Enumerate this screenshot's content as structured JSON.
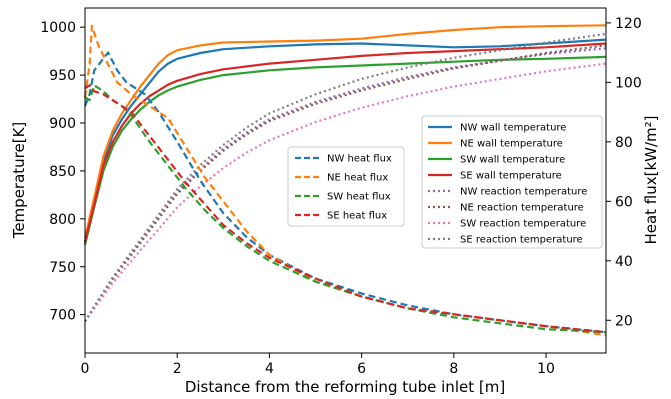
{
  "chart_data": {
    "type": "line",
    "xlabel": "Distance from the reforming tube inlet [m]",
    "ylabel_left": "Temperature[K]",
    "ylabel_right": "Heat flux[kW/m²]",
    "xlim": [
      0,
      11.3
    ],
    "ylim_left": [
      660,
      1020
    ],
    "ylim_right": [
      9,
      125
    ],
    "x_ticks": [
      0,
      2,
      4,
      6,
      8,
      10
    ],
    "y_left_ticks": [
      700,
      750,
      800,
      850,
      900,
      950,
      1000
    ],
    "y_right_ticks": [
      20,
      40,
      60,
      80,
      100,
      120
    ],
    "grid": false,
    "colors": {
      "blue": "#1f77b4",
      "orange": "#ff7f0e",
      "green": "#2ca02c",
      "red": "#d62728",
      "purple": "#9467bd",
      "brown": "#8c564b",
      "pink": "#e377c2",
      "gray": "#7f7f7f"
    },
    "heat_flux_legend_position": "center",
    "temperature_legend_position": "center-right",
    "heat_flux_series": [
      {
        "name": "NW heat flux",
        "axis": "right",
        "style": "dashed",
        "color": "#1f77b4",
        "points": [
          [
            0,
            92
          ],
          [
            0.1,
            96
          ],
          [
            0.2,
            104
          ],
          [
            0.35,
            107
          ],
          [
            0.5,
            110
          ],
          [
            0.7,
            104
          ],
          [
            0.9,
            100
          ],
          [
            1.1,
            98
          ],
          [
            1.3,
            96
          ],
          [
            1.6,
            90
          ],
          [
            2.0,
            80
          ],
          [
            2.5,
            67
          ],
          [
            3.0,
            56
          ],
          [
            3.5,
            48
          ],
          [
            4.0,
            42
          ],
          [
            5.0,
            34
          ],
          [
            6.0,
            29
          ],
          [
            7.0,
            25
          ],
          [
            8.0,
            22
          ],
          [
            9.0,
            20
          ],
          [
            10.0,
            18
          ],
          [
            11.3,
            16
          ]
        ]
      },
      {
        "name": "NE heat flux",
        "axis": "right",
        "style": "dashed",
        "color": "#ff7f0e",
        "points": [
          [
            0,
            95
          ],
          [
            0.1,
            106
          ],
          [
            0.15,
            119
          ],
          [
            0.3,
            112
          ],
          [
            0.5,
            106
          ],
          [
            0.7,
            100
          ],
          [
            1.0,
            96
          ],
          [
            1.4,
            92
          ],
          [
            1.8,
            88
          ],
          [
            2.2,
            78
          ],
          [
            2.6,
            68
          ],
          [
            3.0,
            60
          ],
          [
            3.5,
            50
          ],
          [
            4.0,
            42
          ],
          [
            5.0,
            33
          ],
          [
            6.0,
            28
          ],
          [
            7.0,
            24
          ],
          [
            8.0,
            22
          ],
          [
            9.0,
            20
          ],
          [
            10.0,
            18
          ],
          [
            11.3,
            15
          ]
        ]
      },
      {
        "name": "SW heat flux",
        "axis": "right",
        "style": "dashed",
        "color": "#2ca02c",
        "points": [
          [
            0,
            95
          ],
          [
            0.1,
            94
          ],
          [
            0.2,
            99
          ],
          [
            0.4,
            97
          ],
          [
            0.6,
            94
          ],
          [
            0.8,
            92
          ],
          [
            1.0,
            89
          ],
          [
            1.4,
            80
          ],
          [
            1.8,
            72
          ],
          [
            2.2,
            64
          ],
          [
            2.6,
            57
          ],
          [
            3.0,
            51
          ],
          [
            3.5,
            45
          ],
          [
            4.0,
            40
          ],
          [
            5.0,
            33
          ],
          [
            6.0,
            28
          ],
          [
            7.0,
            24
          ],
          [
            8.0,
            21
          ],
          [
            9.0,
            19
          ],
          [
            10.0,
            17
          ],
          [
            11.3,
            16
          ]
        ]
      },
      {
        "name": "SE heat flux",
        "axis": "right",
        "style": "dashed",
        "color": "#d62728",
        "points": [
          [
            0,
            98
          ],
          [
            0.1,
            99
          ],
          [
            0.2,
            97
          ],
          [
            0.4,
            96
          ],
          [
            0.6,
            94
          ],
          [
            0.8,
            92
          ],
          [
            1.0,
            90
          ],
          [
            1.4,
            82
          ],
          [
            1.8,
            74
          ],
          [
            2.2,
            66
          ],
          [
            2.6,
            59
          ],
          [
            3.0,
            52
          ],
          [
            3.5,
            46
          ],
          [
            4.0,
            41
          ],
          [
            5.0,
            34
          ],
          [
            6.0,
            28
          ],
          [
            7.0,
            24
          ],
          [
            8.0,
            22
          ],
          [
            9.0,
            20
          ],
          [
            10.0,
            18
          ],
          [
            11.3,
            16
          ]
        ]
      }
    ],
    "temperature_series": [
      {
        "name": "NW wall temperature",
        "axis": "left",
        "style": "solid",
        "color": "#1f77b4",
        "points": [
          [
            0,
            775
          ],
          [
            0.2,
            818
          ],
          [
            0.4,
            860
          ],
          [
            0.6,
            887
          ],
          [
            0.8,
            904
          ],
          [
            1.0,
            918
          ],
          [
            1.2,
            930
          ],
          [
            1.4,
            942
          ],
          [
            1.6,
            954
          ],
          [
            1.8,
            962
          ],
          [
            2.0,
            967
          ],
          [
            2.5,
            973
          ],
          [
            3.0,
            977
          ],
          [
            4.0,
            980
          ],
          [
            5.0,
            982
          ],
          [
            6.0,
            983
          ],
          [
            7.0,
            981
          ],
          [
            8.0,
            979
          ],
          [
            9.0,
            980
          ],
          [
            10.0,
            983
          ],
          [
            11.3,
            987
          ]
        ]
      },
      {
        "name": "NE wall temperature",
        "axis": "left",
        "style": "solid",
        "color": "#ff7f0e",
        "points": [
          [
            0,
            780
          ],
          [
            0.2,
            822
          ],
          [
            0.4,
            865
          ],
          [
            0.6,
            892
          ],
          [
            0.8,
            910
          ],
          [
            1.0,
            924
          ],
          [
            1.2,
            938
          ],
          [
            1.4,
            950
          ],
          [
            1.6,
            962
          ],
          [
            1.8,
            971
          ],
          [
            2.0,
            976
          ],
          [
            2.5,
            981
          ],
          [
            3.0,
            984
          ],
          [
            4.0,
            985
          ],
          [
            5.0,
            986
          ],
          [
            6.0,
            988
          ],
          [
            7.0,
            993
          ],
          [
            8.0,
            997
          ],
          [
            9.0,
            1000
          ],
          [
            10.0,
            1001
          ],
          [
            11.3,
            1002
          ]
        ]
      },
      {
        "name": "SW wall temperature",
        "axis": "left",
        "style": "solid",
        "color": "#2ca02c",
        "points": [
          [
            0,
            773
          ],
          [
            0.2,
            812
          ],
          [
            0.4,
            850
          ],
          [
            0.6,
            875
          ],
          [
            0.8,
            892
          ],
          [
            1.0,
            904
          ],
          [
            1.2,
            914
          ],
          [
            1.4,
            922
          ],
          [
            1.6,
            929
          ],
          [
            1.8,
            934
          ],
          [
            2.0,
            938
          ],
          [
            2.5,
            945
          ],
          [
            3.0,
            950
          ],
          [
            4.0,
            955
          ],
          [
            5.0,
            958
          ],
          [
            6.0,
            960
          ],
          [
            7.0,
            962
          ],
          [
            8.0,
            964
          ],
          [
            9.0,
            966
          ],
          [
            10.0,
            967
          ],
          [
            11.3,
            969
          ]
        ]
      },
      {
        "name": "SE wall temperature",
        "axis": "left",
        "style": "solid",
        "color": "#d62728",
        "points": [
          [
            0,
            776
          ],
          [
            0.2,
            815
          ],
          [
            0.4,
            856
          ],
          [
            0.6,
            880
          ],
          [
            0.8,
            897
          ],
          [
            1.0,
            910
          ],
          [
            1.2,
            920
          ],
          [
            1.4,
            928
          ],
          [
            1.6,
            934
          ],
          [
            1.8,
            940
          ],
          [
            2.0,
            944
          ],
          [
            2.5,
            951
          ],
          [
            3.0,
            956
          ],
          [
            4.0,
            962
          ],
          [
            5.0,
            966
          ],
          [
            6.0,
            970
          ],
          [
            7.0,
            973
          ],
          [
            8.0,
            975
          ],
          [
            9.0,
            977
          ],
          [
            10.0,
            979
          ],
          [
            11.3,
            983
          ]
        ]
      },
      {
        "name": "NW reaction temperature",
        "axis": "left",
        "style": "dotted",
        "color": "#9467bd",
        "points": [
          [
            0,
            693
          ],
          [
            0.3,
            716
          ],
          [
            0.6,
            738
          ],
          [
            1.0,
            763
          ],
          [
            1.5,
            795
          ],
          [
            2.0,
            828
          ],
          [
            2.5,
            852
          ],
          [
            3.0,
            873
          ],
          [
            3.5,
            890
          ],
          [
            4.0,
            904
          ],
          [
            5.0,
            922
          ],
          [
            6.0,
            936
          ],
          [
            7.0,
            948
          ],
          [
            8.0,
            958
          ],
          [
            9.0,
            965
          ],
          [
            10.0,
            972
          ],
          [
            11.3,
            978
          ]
        ]
      },
      {
        "name": "NE reaction temperature",
        "axis": "left",
        "style": "dotted",
        "color": "#8c564b",
        "points": [
          [
            0,
            693
          ],
          [
            0.3,
            715
          ],
          [
            0.6,
            737
          ],
          [
            1.0,
            762
          ],
          [
            1.5,
            794
          ],
          [
            2.0,
            826
          ],
          [
            2.5,
            850
          ],
          [
            3.0,
            871
          ],
          [
            3.5,
            888
          ],
          [
            4.0,
            902
          ],
          [
            5.0,
            920
          ],
          [
            6.0,
            934
          ],
          [
            7.0,
            946
          ],
          [
            8.0,
            957
          ],
          [
            9.0,
            965
          ],
          [
            10.0,
            973
          ],
          [
            11.3,
            981
          ]
        ]
      },
      {
        "name": "SW reaction temperature",
        "axis": "left",
        "style": "dotted",
        "color": "#e377c2",
        "points": [
          [
            0,
            693
          ],
          [
            0.3,
            713
          ],
          [
            0.6,
            733
          ],
          [
            1.0,
            756
          ],
          [
            1.5,
            784
          ],
          [
            2.0,
            812
          ],
          [
            2.5,
            834
          ],
          [
            3.0,
            853
          ],
          [
            3.5,
            869
          ],
          [
            4.0,
            882
          ],
          [
            5.0,
            901
          ],
          [
            6.0,
            916
          ],
          [
            7.0,
            928
          ],
          [
            8.0,
            938
          ],
          [
            9.0,
            946
          ],
          [
            10.0,
            954
          ],
          [
            11.3,
            962
          ]
        ]
      },
      {
        "name": "SE reaction temperature",
        "axis": "left",
        "style": "dotted",
        "color": "#7f7f7f",
        "points": [
          [
            0,
            693
          ],
          [
            0.3,
            716
          ],
          [
            0.6,
            739
          ],
          [
            1.0,
            765
          ],
          [
            1.5,
            798
          ],
          [
            2.0,
            831
          ],
          [
            2.5,
            856
          ],
          [
            3.0,
            877
          ],
          [
            3.5,
            895
          ],
          [
            4.0,
            910
          ],
          [
            5.0,
            930
          ],
          [
            6.0,
            946
          ],
          [
            7.0,
            958
          ],
          [
            8.0,
            968
          ],
          [
            9.0,
            976
          ],
          [
            10.0,
            984
          ],
          [
            11.3,
            993
          ]
        ]
      }
    ]
  }
}
